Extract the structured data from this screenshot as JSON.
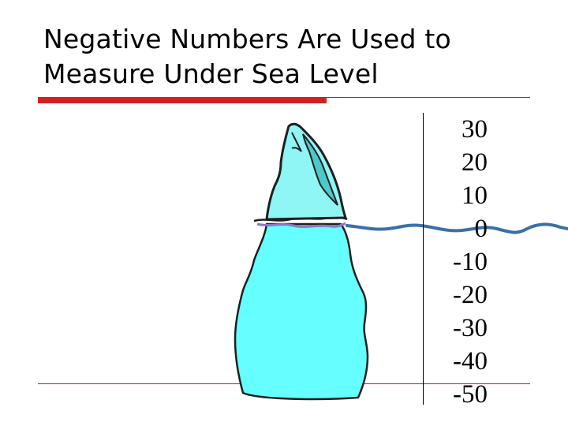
{
  "title": {
    "line1": "Negative Numbers Are Used to",
    "line2": "Measure Under Sea Level"
  },
  "scale": {
    "labels": [
      "30",
      "20",
      "10",
      "0",
      "-10",
      "-20",
      "-30",
      "-40",
      "-50"
    ]
  },
  "colors": {
    "accent_bar": "#d31f1f",
    "rule": "#b22222",
    "ice_underwater": "#66ffff",
    "ice_above": "#8ff5f5",
    "ice_shade": "#4cc9c9",
    "water_line": "#3b6fa8"
  }
}
